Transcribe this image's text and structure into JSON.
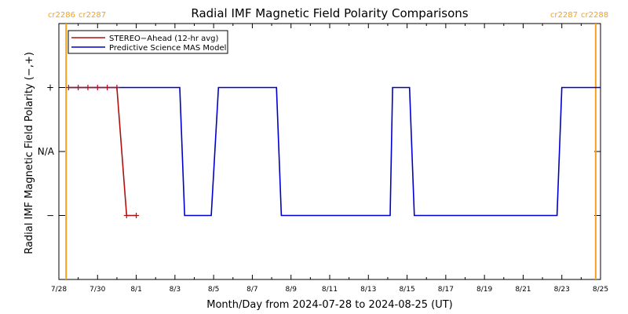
{
  "chart_data": {
    "type": "line",
    "title": "Radial IMF Magnetic Field Polarity Comparisons",
    "xlabel": "Month/Day from 2024-07-28 to 2024-08-25 (UT)",
    "ylabel": "Radial IMF Magnetic Field Polarity (−,+)",
    "xlim": [
      "2024-07-28",
      "2024-08-25"
    ],
    "x_tick_labels": [
      "7/28",
      "7/30",
      "8/1",
      "8/3",
      "8/5",
      "8/7",
      "8/9",
      "8/11",
      "8/13",
      "8/15",
      "8/17",
      "8/19",
      "8/21",
      "8/23",
      "8/25"
    ],
    "y_categories": [
      "−",
      "N/A",
      "+"
    ],
    "y_values_key": {
      "−": -1,
      "N/A": 0,
      "+": 1
    },
    "ylim": [
      -2,
      2
    ],
    "legend_position": "top-left",
    "carrington_markers": [
      {
        "date": "2024-07-28 09:00",
        "left_label": "cr2286",
        "right_label": "cr2287"
      },
      {
        "date": "2024-08-24 18:00",
        "left_label": "cr2287",
        "right_label": "cr2288"
      }
    ],
    "series": [
      {
        "name": "STEREO−Ahead (12-hr avg)",
        "color": "#b01010",
        "marker": "+",
        "points": [
          [
            "2024-07-28 12:00",
            1
          ],
          [
            "2024-07-29 00:00",
            1
          ],
          [
            "2024-07-29 12:00",
            1
          ],
          [
            "2024-07-30 00:00",
            1
          ],
          [
            "2024-07-30 12:00",
            1
          ],
          [
            "2024-07-31 00:00",
            1
          ],
          [
            "2024-07-31 12:00",
            -1
          ],
          [
            "2024-08-01 00:00",
            -1
          ]
        ]
      },
      {
        "name": "Predictive Science MAS Model",
        "color": "#0000cc",
        "marker": "",
        "points": [
          [
            "2024-07-28 12:00",
            1
          ],
          [
            "2024-08-03 06:00",
            1
          ],
          [
            "2024-08-03 12:00",
            -1
          ],
          [
            "2024-08-04 21:00",
            -1
          ],
          [
            "2024-08-05 06:00",
            1
          ],
          [
            "2024-08-08 06:00",
            1
          ],
          [
            "2024-08-08 12:00",
            -1
          ],
          [
            "2024-08-14 03:00",
            -1
          ],
          [
            "2024-08-14 06:00",
            1
          ],
          [
            "2024-08-15 03:00",
            1
          ],
          [
            "2024-08-15 09:00",
            -1
          ],
          [
            "2024-08-22 18:00",
            -1
          ],
          [
            "2024-08-23 00:00",
            1
          ],
          [
            "2024-08-25 00:00",
            1
          ]
        ]
      }
    ]
  }
}
